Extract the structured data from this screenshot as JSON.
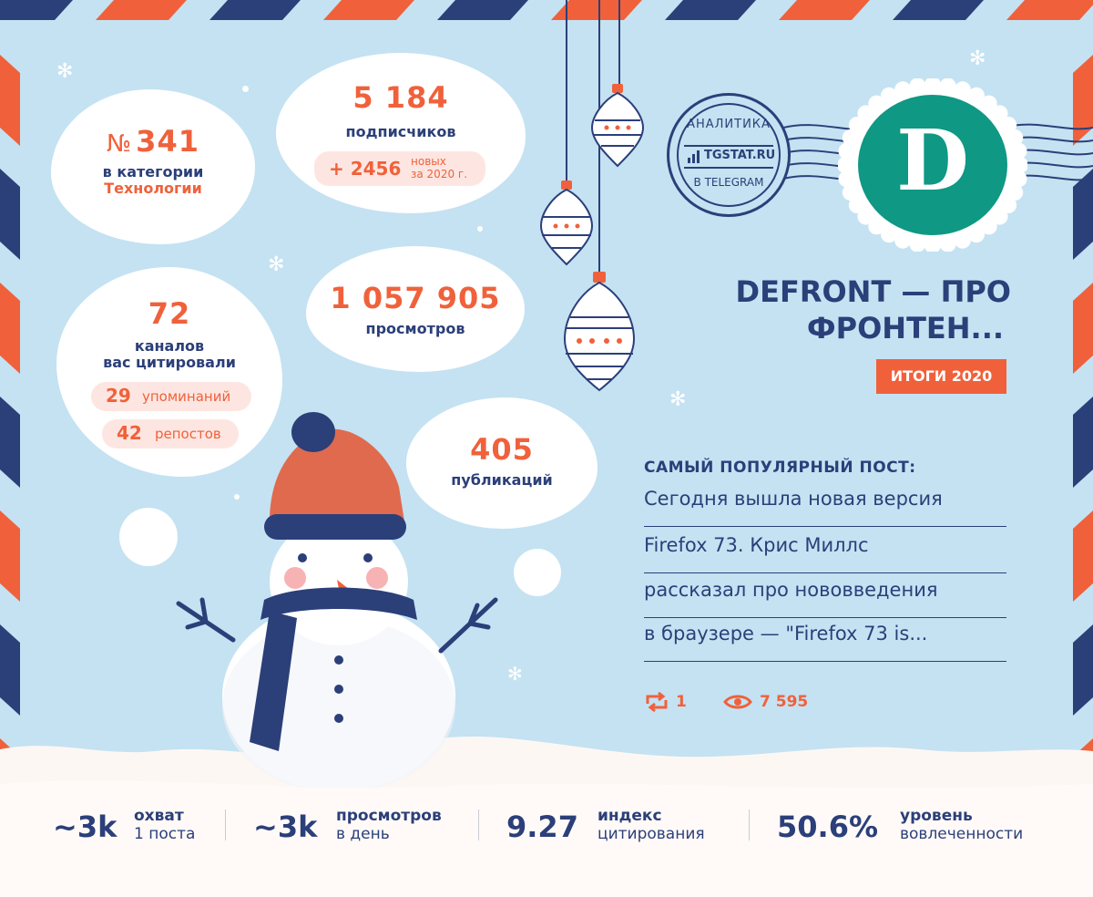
{
  "rank": {
    "prefix": "№",
    "value": "341",
    "label_line1": "в категории",
    "category": "Технологии"
  },
  "subscribers": {
    "value": "5 184",
    "label": "подписчиков",
    "new_value": "+ 2456",
    "new_label_line1": "новых",
    "new_label_line2": "за 2020 г."
  },
  "citations": {
    "value": "72",
    "label_line1": "каналов",
    "label_line2": "вас цитировали",
    "mentions_value": "29",
    "mentions_label": "упоминаний",
    "reposts_value": "42",
    "reposts_label": "репостов"
  },
  "views": {
    "value": "1 057 905",
    "label": "просмотров"
  },
  "posts": {
    "value": "405",
    "label": "публикаций"
  },
  "stamp": {
    "top_text": "АНАЛИТИКА",
    "brand": "TGSTAT.RU",
    "bottom_text": "В TELEGRAM"
  },
  "channel": {
    "title_line1": "DEFRONT — ПРО",
    "title_line2": "ФРОНТЕН...",
    "badge": "ИТОГИ 2020",
    "logo_letter": "D"
  },
  "popular_post": {
    "heading": "САМЫЙ ПОПУЛЯРНЫЙ ПОСТ:",
    "lines": [
      "Сегодня вышла новая версия",
      "Firefox 73. Крис Миллс",
      "рассказал про нововведения",
      "в браузере — \"Firefox 73 is..."
    ],
    "reposts": "1",
    "views": "7 595"
  },
  "stats": [
    {
      "value": "~3k",
      "line1": "охват",
      "line2": "1 поста"
    },
    {
      "value": "~3k",
      "line1": "просмотров",
      "line2": "в день"
    },
    {
      "value": "9.27",
      "line1": "индекс",
      "line2": "цитирования"
    },
    {
      "value": "50.6%",
      "line1": "уровень",
      "line2": "вовлеченности"
    }
  ],
  "colors": {
    "background": "#c4e2f2",
    "accent": "#f0613b",
    "navy": "#2b3f79",
    "teal": "#0f9884",
    "white": "#ffffff"
  },
  "icons": [
    "repost-icon",
    "eye-icon",
    "snowflake-icon",
    "ornament-icon",
    "snowman-icon",
    "signal-bars-icon"
  ]
}
